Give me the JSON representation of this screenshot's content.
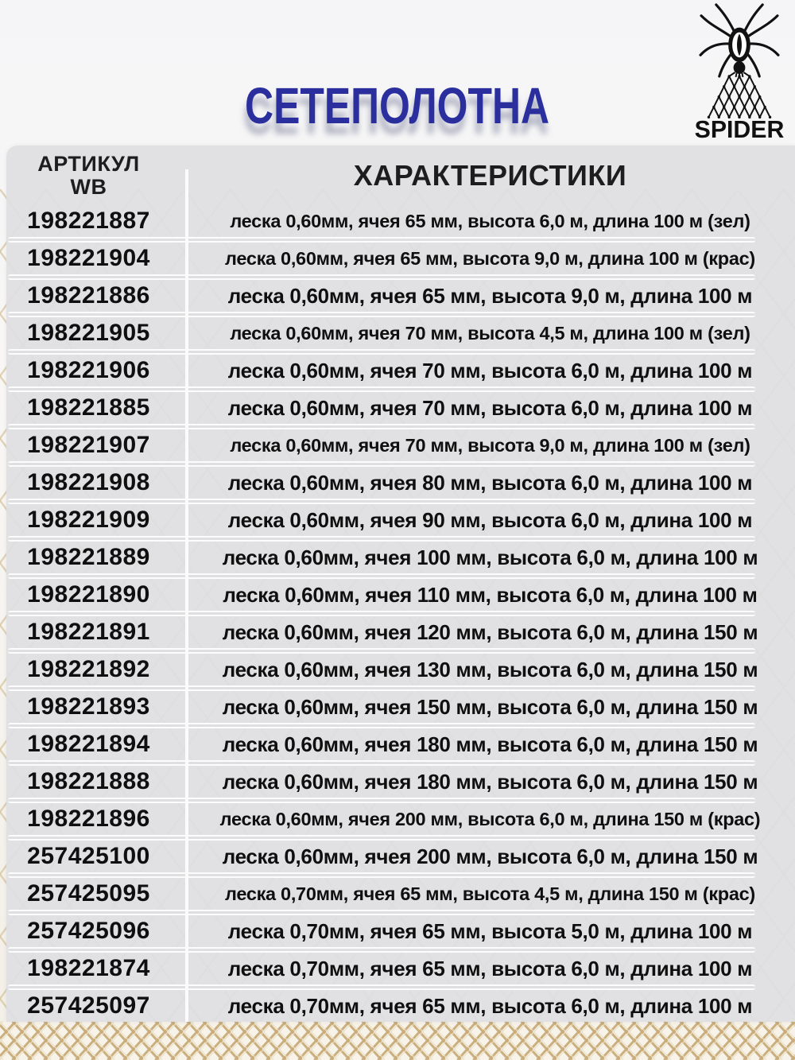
{
  "page": {
    "title": "СЕТЕПОЛОТНА"
  },
  "logo": {
    "brand": "SPIDER",
    "icon": "spider-over-net-icon"
  },
  "colors": {
    "title_blue": "#2b2f9e",
    "panel_gray": "#e0e0e2",
    "net_beige": "#d8c7a1",
    "net_dark_beige": "#c9ac7a",
    "text_black": "#0f0f0f"
  },
  "table": {
    "col1_header_line1": "АРТИКУЛ",
    "col1_header_line2": "WB",
    "col2_header": "ХАРАКТЕРИСТИКИ",
    "rows": [
      {
        "article": "198221887",
        "specs": "леска 0,60мм, ячея 65 мм, высота 6,0 м, длина 100 м (зел)"
      },
      {
        "article": "198221904",
        "specs": "леска 0,60мм, ячея 65 мм, высота 9,0 м, длина 100 м (крас)"
      },
      {
        "article": "198221886",
        "specs": "леска 0,60мм, ячея 65 мм, высота 9,0 м, длина 100 м"
      },
      {
        "article": "198221905",
        "specs": "леска 0,60мм, ячея 70 мм, высота 4,5 м, длина 100 м (зел)"
      },
      {
        "article": "198221906",
        "specs": "леска 0,60мм, ячея 70 мм, высота 6,0 м, длина 100 м"
      },
      {
        "article": "198221885",
        "specs": "леска 0,60мм, ячея 70 мм, высота 6,0 м, длина 100 м"
      },
      {
        "article": "198221907",
        "specs": "леска 0,60мм, ячея 70 мм, высота 9,0 м, длина 100 м (зел)"
      },
      {
        "article": "198221908",
        "specs": "леска 0,60мм, ячея 80 мм, высота 6,0 м, длина 100 м"
      },
      {
        "article": "198221909",
        "specs": "леска 0,60мм, ячея 90 мм, высота 6,0 м, длина 100 м"
      },
      {
        "article": "198221889",
        "specs": "леска 0,60мм, ячея 100 мм, высота 6,0 м, длина 100 м"
      },
      {
        "article": "198221890",
        "specs": "леска 0,60мм, ячея 110 мм, высота 6,0 м, длина 100 м"
      },
      {
        "article": "198221891",
        "specs": "леска 0,60мм, ячея 120 мм, высота 6,0 м, длина 150 м"
      },
      {
        "article": "198221892",
        "specs": "леска 0,60мм, ячея 130 мм, высота 6,0 м, длина 150 м"
      },
      {
        "article": "198221893",
        "specs": "леска 0,60мм, ячея 150 мм, высота 6,0 м, длина 150 м"
      },
      {
        "article": "198221894",
        "specs": "леска 0,60мм, ячея 180 мм, высота 6,0 м, длина 150 м"
      },
      {
        "article": "198221888",
        "specs": "леска 0,60мм, ячея 180 мм, высота 6,0 м, длина 150 м"
      },
      {
        "article": "198221896",
        "specs": "леска 0,60мм, ячея 200 мм, высота 6,0 м, длина 150 м (крас)"
      },
      {
        "article": "257425100",
        "specs": "леска 0,60мм, ячея 200 мм, высота 6,0 м, длина 150 м"
      },
      {
        "article": "257425095",
        "specs": "леска 0,70мм, ячея 65 мм, высота 4,5 м, длина 150 м (крас)"
      },
      {
        "article": "257425096",
        "specs": "леска 0,70мм, ячея 65 мм, высота 5,0 м, длина 100 м"
      },
      {
        "article": "198221874",
        "specs": "леска 0,70мм, ячея 65 мм, высота 6,0 м, длина 100 м"
      },
      {
        "article": "257425097",
        "specs": "леска 0,70мм, ячея 65 мм, высота 6,0 м, длина 100 м"
      }
    ]
  }
}
